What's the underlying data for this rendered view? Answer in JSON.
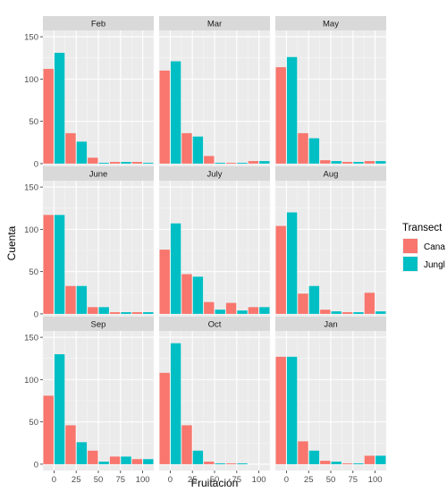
{
  "chart_data": {
    "type": "bar",
    "xlabel": "Fruitación",
    "ylabel": "Cuenta",
    "x_ticks": [
      0,
      25,
      50,
      75,
      100
    ],
    "y_ticks": [
      0,
      50,
      100,
      150
    ],
    "ylim": [
      0,
      150
    ],
    "x_categories": [
      0,
      25,
      50,
      75,
      100
    ],
    "grid": true,
    "legend": {
      "title": "Transect",
      "position": "right",
      "items": [
        {
          "label": "Cana",
          "color": "#F8766D"
        },
        {
          "label": "Jungl",
          "color": "#00BFC4"
        }
      ]
    },
    "panels": [
      {
        "title": "Feb",
        "series": [
          {
            "name": "Cana",
            "values": [
              112,
              36,
              7,
              2,
              2
            ]
          },
          {
            "name": "Jungl",
            "values": [
              131,
              26,
              1,
              2,
              1
            ]
          }
        ]
      },
      {
        "title": "Mar",
        "series": [
          {
            "name": "Cana",
            "values": [
              110,
              36,
              9,
              1,
              3
            ]
          },
          {
            "name": "Jungl",
            "values": [
              121,
              32,
              1,
              1,
              3
            ]
          }
        ]
      },
      {
        "title": "May",
        "series": [
          {
            "name": "Cana",
            "values": [
              114,
              36,
              4,
              2,
              3
            ]
          },
          {
            "name": "Jungl",
            "values": [
              126,
              30,
              3,
              2,
              3
            ]
          }
        ]
      },
      {
        "title": "June",
        "series": [
          {
            "name": "Cana",
            "values": [
              117,
              33,
              8,
              2,
              2
            ]
          },
          {
            "name": "Jungl",
            "values": [
              117,
              33,
              8,
              2,
              2
            ]
          }
        ]
      },
      {
        "title": "July",
        "series": [
          {
            "name": "Cana",
            "values": [
              76,
              47,
              14,
              13,
              8
            ]
          },
          {
            "name": "Jungl",
            "values": [
              107,
              44,
              5,
              4,
              8
            ]
          }
        ]
      },
      {
        "title": "Aug",
        "series": [
          {
            "name": "Cana",
            "values": [
              104,
              24,
              5,
              2,
              25
            ]
          },
          {
            "name": "Jungl",
            "values": [
              120,
              33,
              3,
              2,
              3
            ]
          }
        ]
      },
      {
        "title": "Sep",
        "series": [
          {
            "name": "Cana",
            "values": [
              81,
              46,
              16,
              9,
              6
            ]
          },
          {
            "name": "Jungl",
            "values": [
              130,
              26,
              3,
              9,
              6
            ]
          }
        ]
      },
      {
        "title": "Oct",
        "series": [
          {
            "name": "Cana",
            "values": [
              108,
              46,
              3,
              1,
              0
            ]
          },
          {
            "name": "Jungl",
            "values": [
              143,
              16,
              1,
              1,
              0
            ]
          }
        ]
      },
      {
        "title": "Jan",
        "series": [
          {
            "name": "Cana",
            "values": [
              127,
              27,
              4,
              1,
              10
            ]
          },
          {
            "name": "Jungl",
            "values": [
              127,
              16,
              3,
              1,
              10
            ]
          }
        ]
      }
    ]
  }
}
